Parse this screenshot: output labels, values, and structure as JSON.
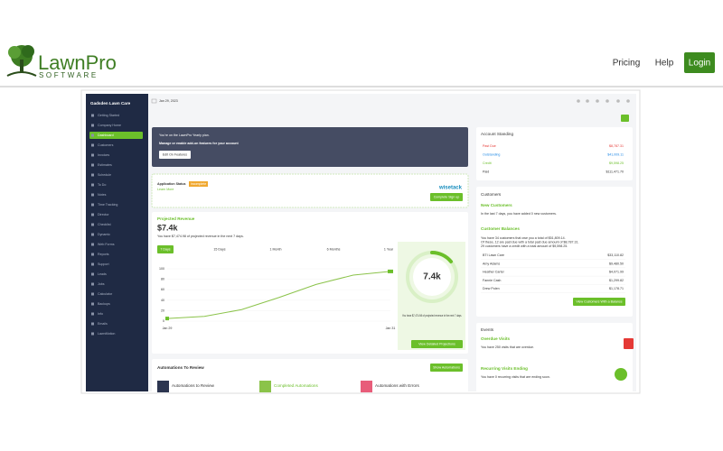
{
  "header": {
    "logo_main": "LawnPro",
    "logo_sub": "SOFTWARE",
    "nav": [
      "Pricing",
      "Help",
      "Login"
    ]
  },
  "app": {
    "company": "Gadsden Lawn Care",
    "date": "Jan 29, 2023",
    "sidebar": [
      "Getting Started",
      "Company Home",
      "Dashboard",
      "Customers",
      "Invoices",
      "Estimates",
      "Schedule",
      "To Do",
      "Notes",
      "Time Tracking",
      "Director",
      "Checklist",
      "Dynamic",
      "Web Forms",
      "Reports",
      "Support",
      "Leads",
      "Jobs",
      "Calculator",
      "Backups",
      "Info",
      "Emails",
      "LawnMotion"
    ],
    "plan": {
      "line1": "You're on the LawnPro Yearly plan.",
      "line2": "Manage or enable add-on features for your account",
      "button": "Edit On Features"
    },
    "application": {
      "label": "Application Status",
      "status": "Incomplete",
      "link": "Learn More",
      "brand": "wisetack",
      "button": "Complete Sign up"
    },
    "revenue": {
      "title": "Projected Revenue",
      "amount": "$7.4k",
      "text": "You have $7,474.98 of projected revenue in the next 7 days.",
      "tabs": [
        "7 Days",
        "15 Days",
        "1 Month",
        "6 Months",
        "1 Year"
      ],
      "chart": {
        "yticks": [
          0,
          20,
          40,
          60,
          80,
          100
        ],
        "ylim": [
          0,
          100
        ],
        "x_labels": [
          "Jan 29",
          "Jan 31"
        ],
        "values": [
          5,
          9,
          22,
          45,
          70,
          88,
          95
        ]
      },
      "gauge": "7.4k",
      "gauge_text": "You have $7,474.98 of projected revenue in the next 7 days.",
      "button": "View Detailed Projections"
    },
    "automations": {
      "title": "Automations To Review",
      "button": "Show Automations",
      "items": [
        "Automations to Review",
        "Completed Automations",
        "Automations with Errors"
      ]
    },
    "account": {
      "title": "Account Standing",
      "rows": [
        [
          "Past Due",
          "$8,787.31"
        ],
        [
          "Outstanding",
          "$41,009.11"
        ],
        [
          "Credit",
          "$9,598.25"
        ],
        [
          "Paid",
          "$111,471.70"
        ]
      ]
    },
    "customers": {
      "title": "Customers",
      "new_title": "New Customers",
      "new_text": "In the last 7 days, you have added 0 new customers.",
      "bal_title": "Customer Balances",
      "bal_text": [
        "You have 34 customers that owe you a total of $51,809.14.",
        "Of these, 12 are past due with a total past due amount of $8,787.31.",
        "29 customers have a credit with a total amount of $9,598.25."
      ],
      "rows": [
        [
          "BTI Lawn Care",
          "$33,110.82"
        ],
        [
          "Amy Adams",
          "$9,480.50"
        ],
        [
          "Heather Carter",
          "$4,071.99"
        ],
        [
          "Fannie Cash",
          "$1,299.82"
        ],
        [
          "Drew Polen",
          "$1,178.71"
        ]
      ],
      "button": "View Customers With a Balance"
    },
    "events": {
      "title": "Events",
      "overdue_title": "Overdue Visits",
      "overdue_text": "You have 250 visits that are overdue.",
      "ending_title": "Recurring Visits Ending",
      "ending_text": "You have 0 recurring visits that are ending soon."
    }
  }
}
